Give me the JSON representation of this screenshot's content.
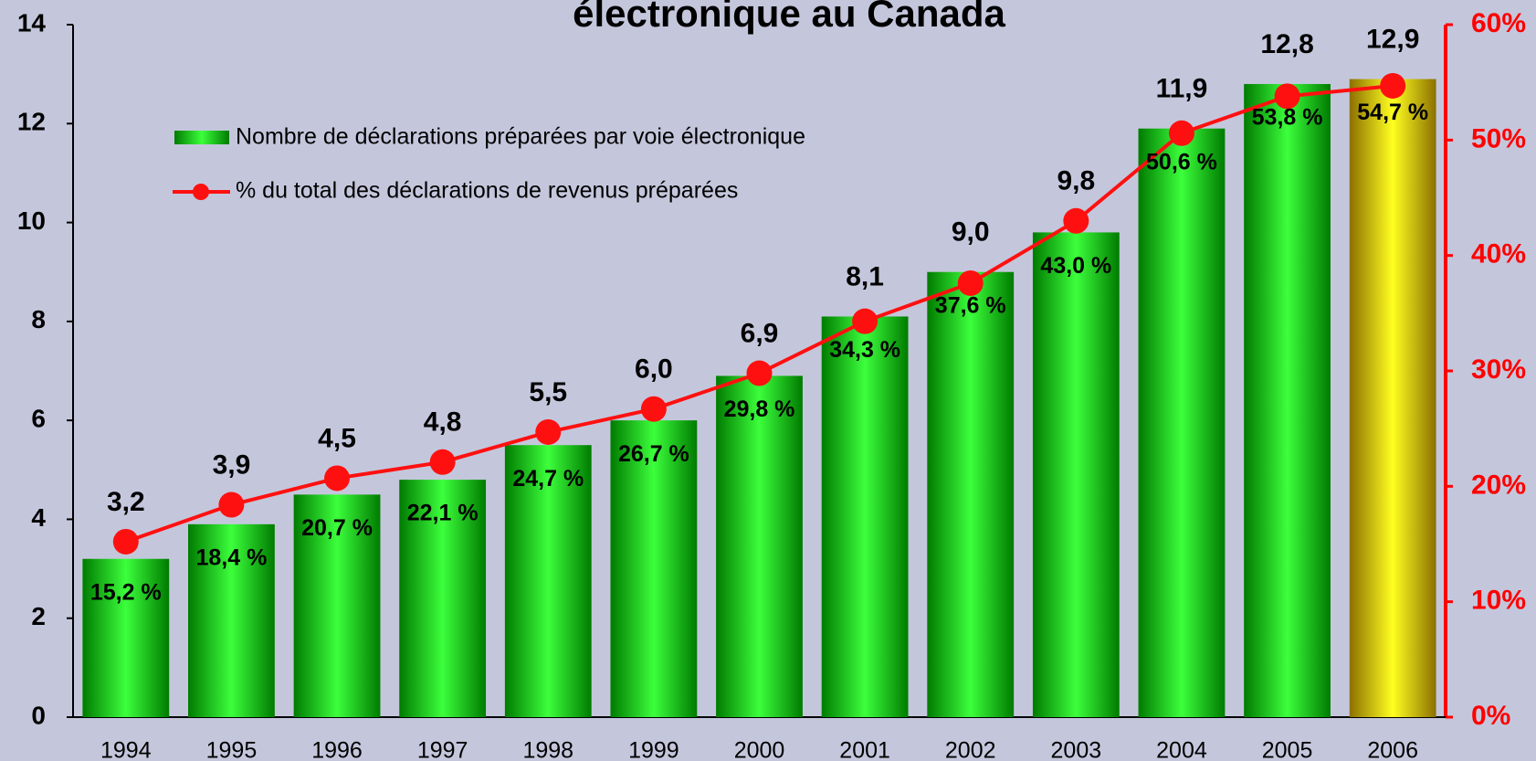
{
  "chart_data": {
    "type": "bar_line",
    "title": "électronique au Canada",
    "categories": [
      "1994",
      "1995",
      "1996",
      "1997",
      "1998",
      "1999",
      "2000",
      "2001",
      "2002",
      "2003",
      "2004",
      "2005",
      "2006"
    ],
    "series": [
      {
        "name": "Nombre de déclarations préparées par voie électronique",
        "type": "bar",
        "values": [
          3.2,
          3.9,
          4.5,
          4.8,
          5.5,
          6.0,
          6.9,
          8.1,
          9.0,
          9.8,
          11.9,
          12.8,
          12.9
        ],
        "value_labels": [
          "3,2",
          "3,9",
          "4,5",
          "4,8",
          "5,5",
          "6,0",
          "6,9",
          "8,1",
          "9,0",
          "9,8",
          "11,9",
          "12,8",
          "12,9"
        ],
        "color": "#00e000",
        "colors": [
          "#00e000",
          "#00e000",
          "#00e000",
          "#00e000",
          "#00e000",
          "#00e000",
          "#00e000",
          "#00e000",
          "#00e000",
          "#00e000",
          "#00e000",
          "#00e000",
          "#ffcc00"
        ]
      },
      {
        "name": "% du total des déclarations de revenus préparées",
        "type": "line",
        "axis": "y2",
        "values": [
          15.2,
          18.4,
          20.7,
          22.1,
          24.7,
          26.7,
          29.8,
          34.3,
          37.6,
          43.0,
          50.6,
          53.8,
          54.7
        ],
        "value_labels": [
          "15,2 %",
          "18,4 %",
          "20,7 %",
          "22,1 %",
          "24,7 %",
          "26,7 %",
          "29,8 %",
          "34,3 %",
          "37,6 %",
          "43,0 %",
          "50,6 %",
          "53,8 %",
          "54,7 %"
        ],
        "color": "#ff1010"
      }
    ],
    "ylim": [
      0,
      14
    ],
    "yticks": [
      0,
      2,
      4,
      6,
      8,
      10,
      12,
      14
    ],
    "y2lim": [
      0,
      60
    ],
    "y2ticks": [
      {
        "value": 0,
        "label": "0%"
      },
      {
        "value": 10,
        "label": "10%"
      },
      {
        "value": 20,
        "label": "20%"
      },
      {
        "value": 30,
        "label": "30%"
      },
      {
        "value": 40,
        "label": "40%"
      },
      {
        "value": 50,
        "label": "50%"
      },
      {
        "value": 60,
        "label": "60%"
      }
    ],
    "y2_color": "#ff0000",
    "legend": "upper left"
  }
}
